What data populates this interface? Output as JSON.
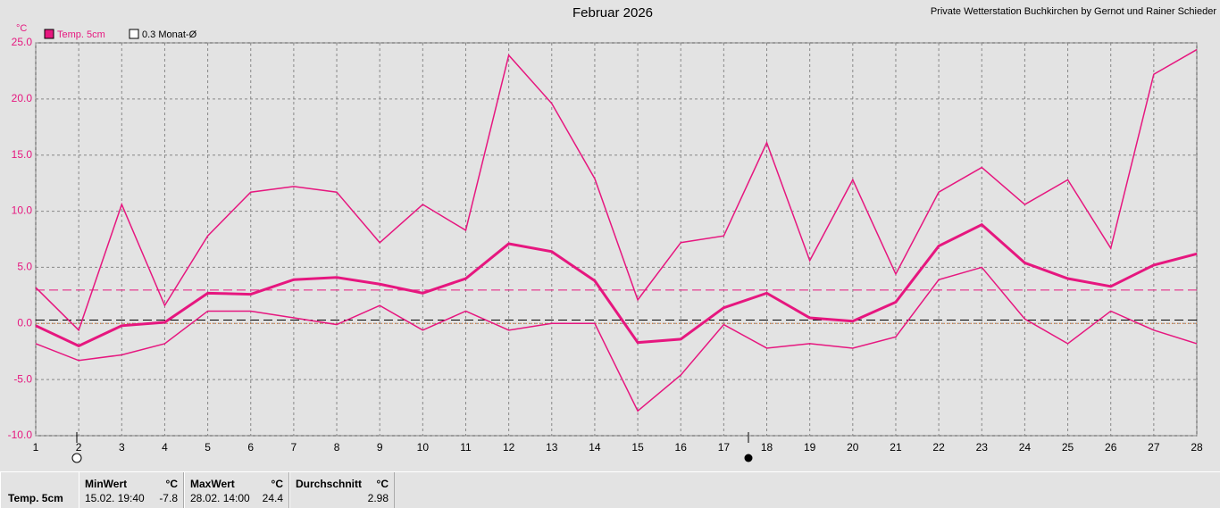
{
  "chart_data": {
    "type": "line",
    "title": "Februar 2026",
    "subtitle": "Private Wetterstation Buchkirchen by Gernot und Rainer Schieder",
    "y_label": "°C",
    "x": [
      1,
      2,
      3,
      4,
      5,
      6,
      7,
      8,
      9,
      10,
      11,
      12,
      13,
      14,
      15,
      16,
      17,
      18,
      19,
      20,
      21,
      22,
      23,
      24,
      25,
      26,
      27,
      28
    ],
    "series": [
      {
        "name": "Temp. 5cm",
        "color": "#e6177f",
        "values": [
          -0.2,
          -2.0,
          -0.2,
          0.1,
          2.7,
          2.6,
          3.9,
          4.1,
          3.5,
          2.7,
          4.0,
          7.1,
          6.4,
          3.8,
          -1.7,
          -1.4,
          1.4,
          2.7,
          0.5,
          0.2,
          1.9,
          6.9,
          8.8,
          5.4,
          4.0,
          3.3,
          5.2,
          6.2
        ],
        "high": [
          3.2,
          -0.6,
          10.6,
          1.6,
          7.8,
          11.7,
          12.2,
          11.7,
          7.2,
          10.6,
          8.3,
          23.9,
          19.6,
          12.9,
          2.1,
          7.2,
          7.8,
          16.1,
          5.6,
          12.8,
          4.4,
          11.7,
          13.9,
          10.6,
          12.8,
          6.7,
          22.2,
          24.4
        ],
        "low": [
          -1.8,
          -3.3,
          -2.8,
          -1.8,
          1.1,
          1.1,
          0.5,
          -0.1,
          1.6,
          -0.6,
          1.1,
          -0.6,
          0.0,
          0.0,
          -7.8,
          -4.6,
          -0.1,
          -2.2,
          -1.8,
          -2.2,
          -1.2,
          3.9,
          5.0,
          0.4,
          -1.8,
          1.1,
          -0.6,
          -1.8
        ]
      }
    ],
    "reference_line": {
      "label": "0.3 Monat-Ø",
      "value": 0.3,
      "color": "#000000"
    },
    "xlim": [
      1,
      28
    ],
    "xticks": [
      1,
      2,
      3,
      4,
      5,
      6,
      7,
      8,
      9,
      10,
      11,
      12,
      13,
      14,
      15,
      16,
      17,
      18,
      19,
      20,
      21,
      22,
      23,
      24,
      25,
      26,
      27,
      28
    ],
    "ylim": [
      -10,
      25
    ],
    "yticks": [
      {
        "value": -10,
        "label": "-10.0"
      },
      {
        "value": -5,
        "label": "-5.0"
      },
      {
        "value": 0,
        "label": "0.0"
      },
      {
        "value": 5,
        "label": "5.0"
      },
      {
        "value": 10,
        "label": "10.0"
      },
      {
        "value": 15,
        "label": "15.0"
      },
      {
        "value": 20,
        "label": "20.0"
      },
      {
        "value": 25,
        "label": "25.0"
      }
    ],
    "grid": true
  },
  "summary": {
    "row_label": "Temp. 5cm",
    "min": {
      "header": "MinWert",
      "unit": "°C",
      "time": "15.02. 19:40",
      "value": -7.8
    },
    "max": {
      "header": "MaxWert",
      "unit": "°C",
      "time": "28.02. 14:00",
      "value": 24.4
    },
    "mean": {
      "header": "Durchschnitt",
      "unit": "°C",
      "value": 2.98
    }
  }
}
